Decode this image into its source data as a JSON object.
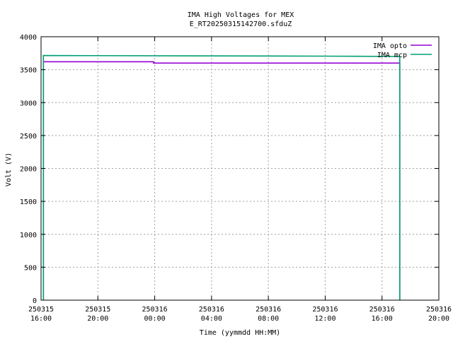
{
  "chart_data": {
    "type": "line",
    "title": "IMA High Voltages for MEX",
    "subtitle": "E_RT20250315142700.sfduZ",
    "xlabel": "Time (yymmdd HH:MM)",
    "ylabel": "Volt (V)",
    "xlim": [
      "2025-03-15 16:00",
      "2025-03-16 20:00"
    ],
    "ylim": [
      0,
      4000
    ],
    "grid": true,
    "legend_position": "top-right",
    "x_ticks": [
      {
        "date": "250315",
        "time": "16:00"
      },
      {
        "date": "250315",
        "time": "20:00"
      },
      {
        "date": "250316",
        "time": "00:00"
      },
      {
        "date": "250316",
        "time": "04:00"
      },
      {
        "date": "250316",
        "time": "08:00"
      },
      {
        "date": "250316",
        "time": "12:00"
      },
      {
        "date": "250316",
        "time": "16:00"
      },
      {
        "date": "250316",
        "time": "20:00"
      }
    ],
    "y_ticks": [
      "0",
      "500",
      "1000",
      "1500",
      "2000",
      "2500",
      "3000",
      "3500",
      "4000"
    ],
    "series": [
      {
        "name": "IMA opto",
        "color": "#9400d3",
        "points": [
          [
            "2025-03-15 16:10",
            0
          ],
          [
            "2025-03-15 16:10",
            3620
          ],
          [
            "2025-03-15 23:55",
            3620
          ],
          [
            "2025-03-15 23:55",
            3600
          ],
          [
            "2025-03-16 17:15",
            3600
          ],
          [
            "2025-03-16 17:15",
            0
          ]
        ]
      },
      {
        "name": "IMA mcp",
        "color": "#009e73",
        "points": [
          [
            "2025-03-15 16:10",
            0
          ],
          [
            "2025-03-15 16:10",
            3715
          ],
          [
            "2025-03-16 12:00",
            3705
          ],
          [
            "2025-03-16 17:15",
            3700
          ],
          [
            "2025-03-16 17:15",
            0
          ]
        ]
      }
    ]
  }
}
